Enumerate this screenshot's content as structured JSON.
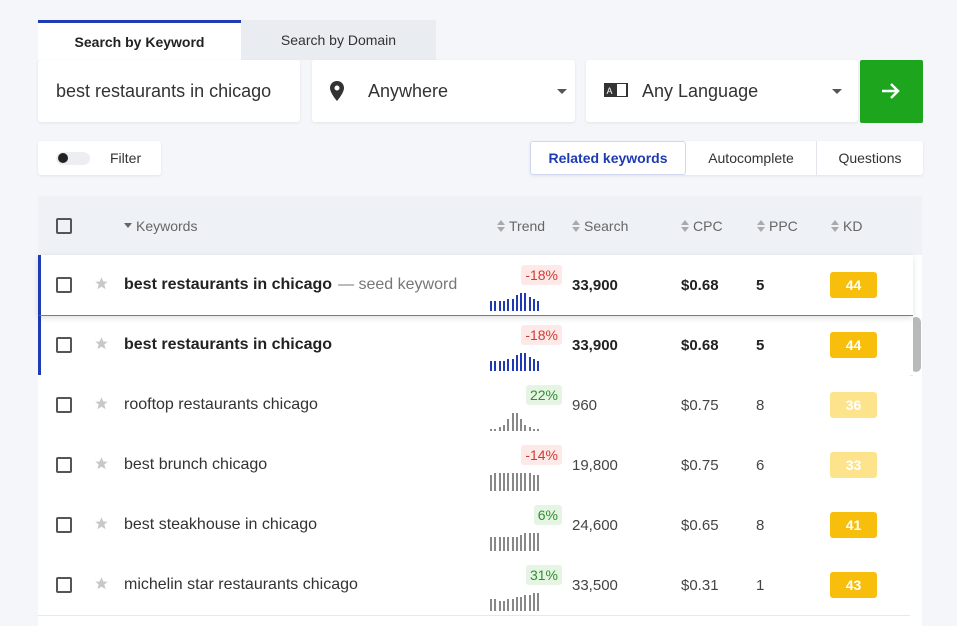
{
  "tabs": [
    "Search by Keyword",
    "Search by Domain"
  ],
  "search": {
    "query": "best restaurants in chicago",
    "location": "Anywhere",
    "language": "Any Language"
  },
  "filter": "Filter",
  "views": [
    "Related keywords",
    "Autocomplete",
    "Questions"
  ],
  "table": {
    "columns": [
      "Keywords",
      "Trend",
      "Search",
      "CPC",
      "PPC",
      "KD"
    ],
    "seed_note": "— seed keyword",
    "seed": {
      "keyword": "best restaurants in chicago",
      "trend": "-18%",
      "search": "33,900",
      "cpc": "$0.68",
      "ppc": 5,
      "kd": 44,
      "spark": [
        5,
        5,
        5,
        5,
        6,
        6,
        8,
        9,
        9,
        7,
        6,
        5
      ]
    },
    "rows": [
      {
        "keyword": "best restaurants in chicago",
        "trend": "-18%",
        "search": "33,900",
        "cpc": "$0.68",
        "ppc": 5,
        "kd": 44,
        "spark": [
          5,
          5,
          5,
          5,
          6,
          6,
          8,
          9,
          9,
          7,
          6,
          5
        ]
      },
      {
        "keyword": "rooftop restaurants chicago",
        "trend": "22%",
        "search": "960",
        "cpc": "$0.75",
        "ppc": 8,
        "kd": 36,
        "spark": [
          1,
          1,
          2,
          3,
          6,
          9,
          9,
          6,
          3,
          2,
          1,
          1
        ]
      },
      {
        "keyword": "best brunch chicago",
        "trend": "-14%",
        "search": "19,800",
        "cpc": "$0.75",
        "ppc": 6,
        "kd": 33,
        "spark": [
          8,
          9,
          9,
          9,
          9,
          9,
          9,
          9,
          9,
          9,
          8,
          8
        ]
      },
      {
        "keyword": "best steakhouse in chicago",
        "trend": "6%",
        "search": "24,600",
        "cpc": "$0.65",
        "ppc": 8,
        "kd": 41,
        "spark": [
          7,
          7,
          7,
          7,
          7,
          7,
          7,
          8,
          9,
          9,
          9,
          9
        ]
      },
      {
        "keyword": "michelin star restaurants chicago",
        "trend": "31%",
        "search": "33,500",
        "cpc": "$0.31",
        "ppc": 1,
        "kd": 43,
        "spark": [
          6,
          6,
          5,
          5,
          6,
          6,
          7,
          7,
          8,
          8,
          9,
          9
        ]
      }
    ]
  }
}
